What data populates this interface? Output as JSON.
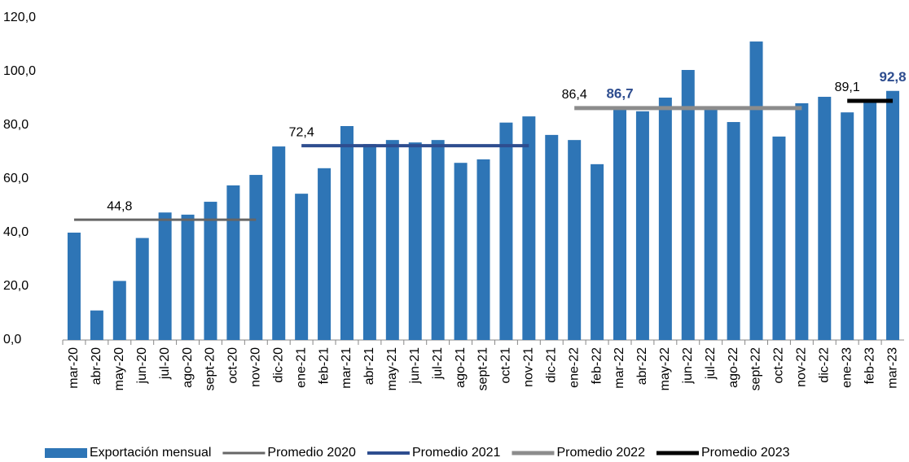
{
  "chart_data": {
    "type": "bar",
    "categories": [
      "mar-20",
      "abr-20",
      "may-20",
      "jun-20",
      "jul-20",
      "ago-20",
      "sept-20",
      "oct-20",
      "nov-20",
      "dic-20",
      "ene-21",
      "feb-21",
      "mar-21",
      "abr-21",
      "may-21",
      "jun-21",
      "jul-21",
      "ago-21",
      "sept-21",
      "oct-21",
      "nov-21",
      "dic-21",
      "ene-22",
      "feb-22",
      "mar-22",
      "abr-22",
      "may-22",
      "jun-22",
      "jul-22",
      "ago-22",
      "sept-22",
      "oct-22",
      "nov-22",
      "dic-22",
      "ene-23",
      "feb-23",
      "mar-23"
    ],
    "ylim": [
      0,
      120
    ],
    "yticks": [
      {
        "value": 0,
        "label": "0,0"
      },
      {
        "value": 20,
        "label": "20,0"
      },
      {
        "value": 40,
        "label": "40,0"
      },
      {
        "value": 60,
        "label": "60,0"
      },
      {
        "value": 80,
        "label": "80,0"
      },
      {
        "value": 100,
        "label": "100,0"
      },
      {
        "value": 120,
        "label": "120,0"
      }
    ],
    "legend": "bottom",
    "series": [
      {
        "name": "Exportación mensual",
        "type": "bar",
        "color": "#2e75b6",
        "values": [
          40,
          11,
          22,
          38,
          47.5,
          46.7,
          51.5,
          57.6,
          61.5,
          72.1,
          54.5,
          64,
          79.7,
          73,
          74.5,
          73.6,
          74.5,
          66,
          67.3,
          81,
          83.3,
          76.4,
          74.5,
          65.5,
          86.7,
          85.2,
          90.3,
          100.6,
          86.5,
          81.2,
          111.2,
          75.8,
          88.2,
          90.6,
          84.8,
          89.4,
          92.8
        ],
        "value_labels": [
          null,
          null,
          null,
          null,
          null,
          null,
          null,
          null,
          null,
          null,
          null,
          null,
          null,
          null,
          null,
          null,
          null,
          null,
          null,
          null,
          null,
          null,
          null,
          null,
          "86,7",
          null,
          null,
          null,
          null,
          null,
          null,
          null,
          null,
          null,
          null,
          null,
          "92,8"
        ]
      },
      {
        "name": "Promedio 2020",
        "type": "line",
        "color": "#666666",
        "width": 3,
        "values": [
          44.8,
          44.8,
          44.8,
          44.8,
          44.8,
          44.8,
          44.8,
          44.8,
          44.8,
          null,
          null,
          null,
          null,
          null,
          null,
          null,
          null,
          null,
          null,
          null,
          null,
          null,
          null,
          null,
          null,
          null,
          null,
          null,
          null,
          null,
          null,
          null,
          null,
          null,
          null,
          null,
          null
        ],
        "value_labels": [
          null,
          null,
          "44,8",
          null,
          null,
          null,
          null,
          null,
          null,
          null,
          null,
          null,
          null,
          null,
          null,
          null,
          null,
          null,
          null,
          null,
          null,
          null,
          null,
          null,
          null,
          null,
          null,
          null,
          null,
          null,
          null,
          null,
          null,
          null,
          null,
          null,
          null
        ]
      },
      {
        "name": "Promedio 2021",
        "type": "line",
        "color": "#2e4d8f",
        "width": 4,
        "values": [
          null,
          null,
          null,
          null,
          null,
          null,
          null,
          null,
          null,
          null,
          72.4,
          72.4,
          72.4,
          72.4,
          72.4,
          72.4,
          72.4,
          72.4,
          72.4,
          72.4,
          72.4,
          null,
          null,
          null,
          null,
          null,
          null,
          null,
          null,
          null,
          null,
          null,
          null,
          null,
          null,
          null,
          null
        ],
        "value_labels": [
          null,
          null,
          null,
          null,
          null,
          null,
          null,
          null,
          null,
          null,
          "72,4",
          null,
          null,
          null,
          null,
          null,
          null,
          null,
          null,
          null,
          null,
          null,
          null,
          null,
          null,
          null,
          null,
          null,
          null,
          null,
          null,
          null,
          null,
          null,
          null,
          null,
          null
        ]
      },
      {
        "name": "Promedio 2022",
        "type": "line",
        "color": "#8c8c8c",
        "width": 5,
        "values": [
          null,
          null,
          null,
          null,
          null,
          null,
          null,
          null,
          null,
          null,
          null,
          null,
          null,
          null,
          null,
          null,
          null,
          null,
          null,
          null,
          null,
          null,
          86.4,
          86.4,
          86.4,
          86.4,
          86.4,
          86.4,
          86.4,
          86.4,
          86.4,
          86.4,
          86.4,
          null,
          null,
          null,
          null
        ],
        "value_labels": [
          null,
          null,
          null,
          null,
          null,
          null,
          null,
          null,
          null,
          null,
          null,
          null,
          null,
          null,
          null,
          null,
          null,
          null,
          null,
          null,
          null,
          null,
          "86,4",
          null,
          null,
          null,
          null,
          null,
          null,
          null,
          null,
          null,
          null,
          null,
          null,
          null,
          null
        ]
      },
      {
        "name": "Promedio 2023",
        "type": "line",
        "color": "#000000",
        "width": 5,
        "values": [
          null,
          null,
          null,
          null,
          null,
          null,
          null,
          null,
          null,
          null,
          null,
          null,
          null,
          null,
          null,
          null,
          null,
          null,
          null,
          null,
          null,
          null,
          null,
          null,
          null,
          null,
          null,
          null,
          null,
          null,
          null,
          null,
          null,
          null,
          89.1,
          89.1,
          89.1
        ],
        "value_labels": [
          null,
          null,
          null,
          null,
          null,
          null,
          null,
          null,
          null,
          null,
          null,
          null,
          null,
          null,
          null,
          null,
          null,
          null,
          null,
          null,
          null,
          null,
          null,
          null,
          null,
          null,
          null,
          null,
          null,
          null,
          null,
          null,
          null,
          null,
          "89,1",
          null,
          null
        ]
      }
    ]
  }
}
